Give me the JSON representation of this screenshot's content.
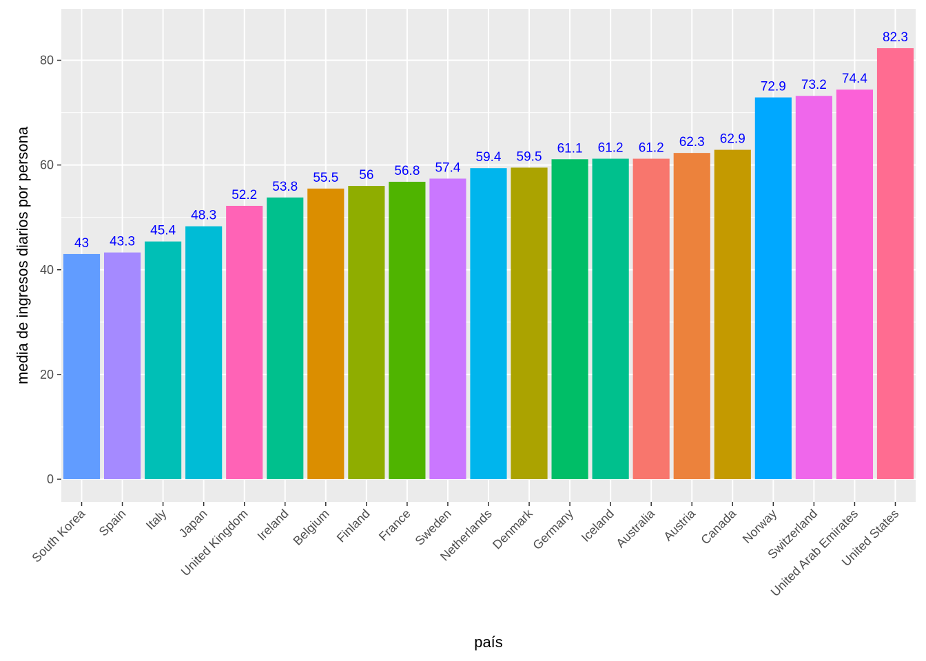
{
  "chart_data": {
    "type": "bar",
    "xlabel": "país",
    "ylabel": "media de ingresos diarios por persona",
    "ylim": [
      0,
      90
    ],
    "yticks": [
      0,
      20,
      40,
      60,
      80
    ],
    "grid": true,
    "legend": "none",
    "background": "#ebebeb",
    "gridline_color": "#ffffff",
    "label_color": "#0000ff",
    "categories": [
      "South Korea",
      "Spain",
      "Italy",
      "Japan",
      "United Kingdom",
      "Ireland",
      "Belgium",
      "Finland",
      "France",
      "Sweden",
      "Netherlands",
      "Denmark",
      "Germany",
      "Iceland",
      "Australia",
      "Austria",
      "Canada",
      "Norway",
      "Switzerland",
      "United Arab Emirates",
      "United States"
    ],
    "values": [
      43,
      43.3,
      45.4,
      48.3,
      52.2,
      53.8,
      55.5,
      56,
      56.8,
      57.4,
      59.4,
      59.5,
      61.1,
      61.2,
      61.2,
      62.3,
      62.9,
      72.9,
      73.2,
      74.4,
      82.3
    ],
    "colors": [
      "#619cff",
      "#a58aff",
      "#00bfb6",
      "#00bcd6",
      "#ff63b6",
      "#00c08d",
      "#db8e00",
      "#8fad00",
      "#4fb400",
      "#ca77ff",
      "#00b5ed",
      "#aba300",
      "#00be67",
      "#00c08d",
      "#f8766d",
      "#ec823c",
      "#c49a00",
      "#00a8ff",
      "#ef67eb",
      "#fb61d7",
      "#ff6c91"
    ]
  }
}
